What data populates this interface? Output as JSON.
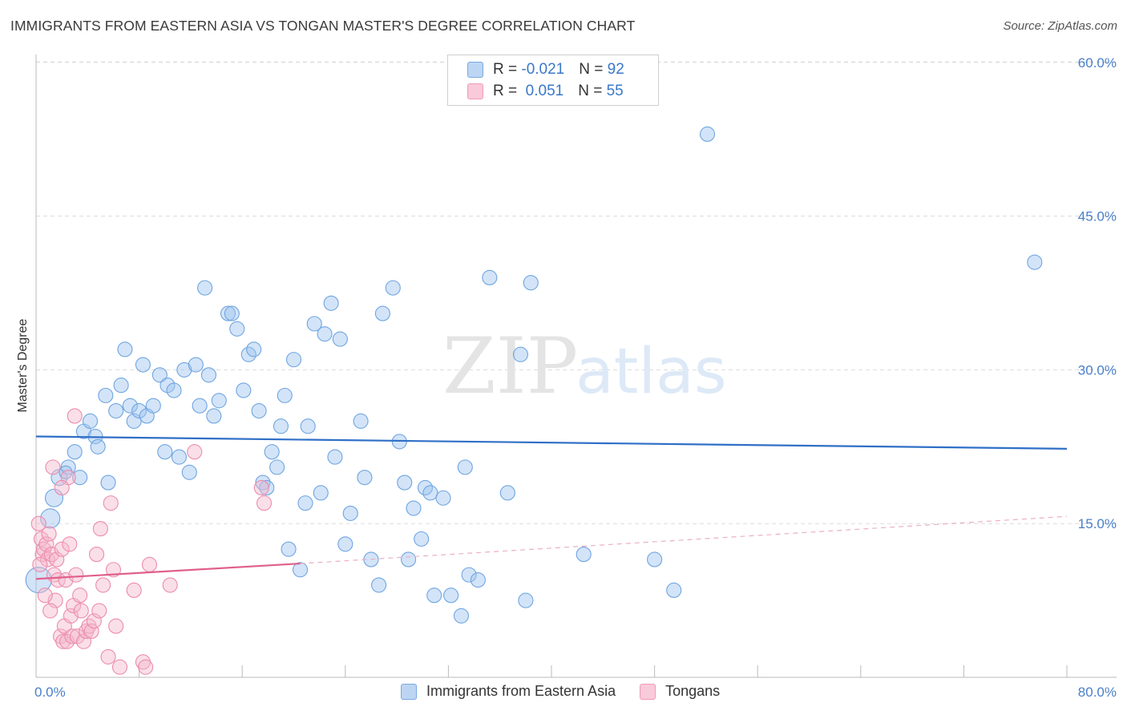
{
  "title": "IMMIGRANTS FROM EASTERN ASIA VS TONGAN MASTER'S DEGREE CORRELATION CHART",
  "source": "Source: ZipAtlas.com",
  "watermark": {
    "zip": "ZIP",
    "atlas": "atlas"
  },
  "legend_top": {
    "rows": [
      {
        "r_label": "R = ",
        "r_value": "-0.021",
        "n_label": "N = ",
        "n_value": "92",
        "color": "#9dc3ef"
      },
      {
        "r_label": "R = ",
        "r_value": " 0.051",
        "n_label": "N = ",
        "n_value": "55",
        "color": "#f5b7cb"
      }
    ]
  },
  "legend_bottom": {
    "items": [
      {
        "label": "Immigrants from Eastern Asia",
        "color": "#9dc3ef"
      },
      {
        "label": "Tongans",
        "color": "#f5b7cb"
      }
    ]
  },
  "chart_data": {
    "type": "scatter",
    "ylabel": "Master's Degree",
    "xlim": [
      0,
      80
    ],
    "ylim": [
      0,
      62
    ],
    "x_tick_labels": [
      {
        "value": 0,
        "label": "0.0%"
      },
      {
        "value": 80,
        "label": "80.0%"
      }
    ],
    "y_tick_labels": [
      {
        "value": 15,
        "label": "15.0%"
      },
      {
        "value": 30,
        "label": "30.0%"
      },
      {
        "value": 45,
        "label": "45.0%"
      },
      {
        "value": 60,
        "label": "60.0%"
      }
    ],
    "grid": "horizontal dashed",
    "series": [
      {
        "name": "Immigrants from Eastern Asia",
        "color": "#6fa5e0",
        "fill": "rgba(157,195,239,0.45)",
        "trend": {
          "x": [
            0,
            80
          ],
          "y": [
            23.5,
            22.3
          ],
          "color": "#2f6fc7"
        },
        "points": [
          [
            0.2,
            9.5,
            16
          ],
          [
            1.1,
            15.5,
            12
          ],
          [
            1.4,
            17.5,
            11
          ],
          [
            1.8,
            19.5,
            10
          ],
          [
            2.5,
            20.5,
            9
          ],
          [
            2.3,
            20.0,
            8
          ],
          [
            3.0,
            22.0,
            9
          ],
          [
            3.4,
            19.5,
            9
          ],
          [
            3.7,
            24.0,
            9
          ],
          [
            4.2,
            25.0,
            9
          ],
          [
            4.6,
            23.5,
            9
          ],
          [
            4.8,
            22.5,
            9
          ],
          [
            5.4,
            27.5,
            9
          ],
          [
            5.6,
            19.0,
            9
          ],
          [
            6.2,
            26.0,
            9
          ],
          [
            6.6,
            28.5,
            9
          ],
          [
            6.9,
            32.0,
            9
          ],
          [
            7.3,
            26.5,
            9
          ],
          [
            7.6,
            25.0,
            9
          ],
          [
            8.0,
            26.0,
            9
          ],
          [
            8.3,
            30.5,
            9
          ],
          [
            8.6,
            25.5,
            9
          ],
          [
            9.1,
            26.5,
            9
          ],
          [
            9.6,
            29.5,
            9
          ],
          [
            10.0,
            22.0,
            9
          ],
          [
            10.2,
            28.5,
            9
          ],
          [
            10.7,
            28.0,
            9
          ],
          [
            11.1,
            21.5,
            9
          ],
          [
            11.5,
            30.0,
            9
          ],
          [
            11.9,
            20.0,
            9
          ],
          [
            12.4,
            30.5,
            9
          ],
          [
            12.7,
            26.5,
            9
          ],
          [
            13.1,
            38.0,
            9
          ],
          [
            13.4,
            29.5,
            9
          ],
          [
            13.8,
            25.5,
            9
          ],
          [
            14.2,
            27.0,
            9
          ],
          [
            14.9,
            35.5,
            9
          ],
          [
            15.2,
            35.5,
            9
          ],
          [
            15.6,
            34.0,
            9
          ],
          [
            16.1,
            28.0,
            9
          ],
          [
            16.5,
            31.5,
            9
          ],
          [
            16.9,
            32.0,
            9
          ],
          [
            17.3,
            26.0,
            9
          ],
          [
            17.6,
            19.0,
            9
          ],
          [
            17.9,
            18.5,
            9
          ],
          [
            18.3,
            22.0,
            9
          ],
          [
            18.7,
            20.5,
            9
          ],
          [
            19.0,
            24.5,
            9
          ],
          [
            19.3,
            27.5,
            9
          ],
          [
            19.6,
            12.5,
            9
          ],
          [
            20.0,
            31.0,
            9
          ],
          [
            20.5,
            10.5,
            9
          ],
          [
            20.9,
            17.0,
            9
          ],
          [
            21.1,
            24.5,
            9
          ],
          [
            21.6,
            34.5,
            9
          ],
          [
            22.1,
            18.0,
            9
          ],
          [
            22.4,
            33.5,
            9
          ],
          [
            22.9,
            36.5,
            9
          ],
          [
            23.2,
            21.5,
            9
          ],
          [
            23.6,
            33.0,
            9
          ],
          [
            24.0,
            13.0,
            9
          ],
          [
            24.4,
            16.0,
            9
          ],
          [
            25.2,
            25.0,
            9
          ],
          [
            25.5,
            19.5,
            9
          ],
          [
            26.0,
            11.5,
            9
          ],
          [
            26.6,
            9.0,
            9
          ],
          [
            26.9,
            35.5,
            9
          ],
          [
            27.7,
            38.0,
            9
          ],
          [
            28.2,
            23.0,
            9
          ],
          [
            28.6,
            19.0,
            9
          ],
          [
            28.9,
            11.5,
            9
          ],
          [
            29.3,
            16.5,
            9
          ],
          [
            29.9,
            13.5,
            9
          ],
          [
            30.2,
            18.5,
            9
          ],
          [
            30.6,
            18.0,
            9
          ],
          [
            30.9,
            8.0,
            9
          ],
          [
            31.6,
            17.5,
            9
          ],
          [
            32.2,
            8.0,
            9
          ],
          [
            33.0,
            6.0,
            9
          ],
          [
            33.3,
            20.5,
            9
          ],
          [
            33.6,
            10.0,
            9
          ],
          [
            34.3,
            9.5,
            9
          ],
          [
            35.2,
            39.0,
            9
          ],
          [
            36.6,
            18.0,
            9
          ],
          [
            37.6,
            31.5,
            9
          ],
          [
            38.0,
            7.5,
            9
          ],
          [
            38.4,
            38.5,
            9
          ],
          [
            42.5,
            12.0,
            9
          ],
          [
            48.0,
            11.5,
            9
          ],
          [
            49.5,
            8.5,
            9
          ],
          [
            52.1,
            53.0,
            9
          ],
          [
            77.5,
            40.5,
            9
          ]
        ]
      },
      {
        "name": "Tongans",
        "color": "#ec8cab",
        "fill": "rgba(245,183,203,0.45)",
        "trend": {
          "x": [
            0,
            20.5
          ],
          "y": [
            9.6,
            11.1
          ],
          "color": "#e0608c",
          "dash_to": [
            80,
            15.7
          ]
        },
        "points": [
          [
            0.2,
            15.0,
            9
          ],
          [
            0.4,
            13.5,
            9
          ],
          [
            0.5,
            12.0,
            9
          ],
          [
            0.6,
            12.5,
            9
          ],
          [
            0.8,
            13.0,
            9
          ],
          [
            0.9,
            11.5,
            9
          ],
          [
            1.0,
            14.0,
            9
          ],
          [
            1.2,
            12.0,
            9
          ],
          [
            1.3,
            20.5,
            9
          ],
          [
            1.4,
            10.0,
            9
          ],
          [
            1.5,
            7.5,
            9
          ],
          [
            1.6,
            11.5,
            9
          ],
          [
            1.7,
            9.5,
            9
          ],
          [
            1.9,
            4.0,
            9
          ],
          [
            2.0,
            12.5,
            9
          ],
          [
            2.1,
            3.5,
            9
          ],
          [
            2.2,
            5.0,
            9
          ],
          [
            2.3,
            9.5,
            9
          ],
          [
            2.4,
            3.5,
            9
          ],
          [
            2.5,
            19.5,
            9
          ],
          [
            2.6,
            13.0,
            9
          ],
          [
            2.7,
            6.0,
            9
          ],
          [
            2.8,
            4.0,
            9
          ],
          [
            2.9,
            7.0,
            9
          ],
          [
            3.0,
            25.5,
            9
          ],
          [
            3.2,
            4.0,
            9
          ],
          [
            3.4,
            8.0,
            9
          ],
          [
            3.5,
            6.5,
            9
          ],
          [
            3.7,
            3.5,
            9
          ],
          [
            3.9,
            4.5,
            9
          ],
          [
            4.1,
            5.0,
            9
          ],
          [
            4.3,
            4.5,
            9
          ],
          [
            4.5,
            5.5,
            9
          ],
          [
            4.7,
            12.0,
            9
          ],
          [
            4.9,
            6.5,
            9
          ],
          [
            5.0,
            14.5,
            9
          ],
          [
            5.2,
            9.0,
            9
          ],
          [
            5.6,
            2.0,
            9
          ],
          [
            5.8,
            17.0,
            9
          ],
          [
            6.0,
            10.5,
            9
          ],
          [
            6.2,
            5.0,
            9
          ],
          [
            6.5,
            1.0,
            9
          ],
          [
            7.6,
            8.5,
            9
          ],
          [
            8.3,
            1.5,
            9
          ],
          [
            8.5,
            1.0,
            9
          ],
          [
            8.8,
            11.0,
            9
          ],
          [
            10.4,
            9.0,
            9
          ],
          [
            12.3,
            22.0,
            9
          ],
          [
            17.5,
            18.5,
            9
          ],
          [
            17.7,
            17.0,
            9
          ],
          [
            0.7,
            8.0,
            9
          ],
          [
            1.1,
            6.5,
            9
          ],
          [
            2.0,
            18.5,
            9
          ],
          [
            3.1,
            10.0,
            9
          ],
          [
            0.3,
            11.0,
            9
          ]
        ]
      }
    ]
  }
}
